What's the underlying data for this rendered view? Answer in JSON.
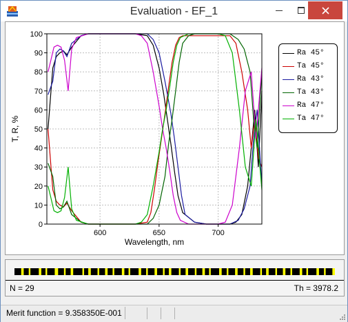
{
  "window": {
    "title": "Evaluation - EF_1"
  },
  "title_buttons": {
    "minimize": "minimize-icon",
    "maximize": "maximize-icon",
    "close": "close-icon"
  },
  "chart_data": {
    "type": "line",
    "xlabel": "Wavelength, nm",
    "ylabel": "T, R, %",
    "xlim": [
      555,
      737
    ],
    "ylim": [
      0,
      100
    ],
    "xticks": [
      600,
      650,
      700
    ],
    "yticks": [
      0,
      10,
      20,
      30,
      40,
      50,
      60,
      70,
      80,
      90,
      100
    ],
    "grid": true,
    "legend_position": "top-right",
    "series": [
      {
        "name": "Ra 45°",
        "color": "#000000",
        "x": [
          556,
          560,
          563,
          566,
          569,
          572,
          576,
          580,
          584,
          590,
          600,
          610,
          620,
          630,
          640,
          645,
          650,
          654,
          657,
          660,
          663,
          666,
          670,
          680,
          690,
          700,
          710,
          715,
          720,
          725,
          728,
          731,
          734,
          737
        ],
        "y": [
          50,
          82,
          88,
          90,
          91,
          89,
          93,
          96,
          99,
          100,
          100,
          100,
          100,
          100,
          99,
          94,
          82,
          68,
          55,
          42,
          28,
          15,
          6,
          1,
          0,
          0,
          0,
          1,
          5,
          20,
          40,
          60,
          30,
          70
        ]
      },
      {
        "name": "Ta 45°",
        "color": "#cc0000",
        "x": [
          556,
          560,
          563,
          566,
          569,
          572,
          576,
          580,
          584,
          590,
          600,
          610,
          620,
          630,
          640,
          643,
          646,
          649,
          652,
          655,
          658,
          661,
          664,
          667,
          670,
          680,
          690,
          700,
          710,
          715,
          720,
          725,
          728,
          731,
          734,
          737
        ],
        "y": [
          50,
          18,
          12,
          10,
          9,
          11,
          7,
          4,
          1,
          0,
          0,
          0,
          0,
          0,
          1,
          6,
          18,
          32,
          45,
          58,
          72,
          85,
          94,
          98,
          99,
          99,
          99,
          99,
          99,
          95,
          80,
          60,
          40,
          55,
          35,
          30
        ]
      },
      {
        "name": "Ra 43°",
        "color": "#1a1aa0",
        "x": [
          556,
          560,
          563,
          566,
          569,
          572,
          576,
          580,
          584,
          590,
          600,
          610,
          620,
          630,
          640,
          645,
          650,
          655,
          660,
          663,
          666,
          669,
          672,
          680,
          690,
          700,
          710,
          717,
          722,
          727,
          730,
          733,
          737
        ],
        "y": [
          68,
          75,
          90,
          92,
          91,
          88,
          95,
          97,
          99,
          100,
          100,
          100,
          100,
          100,
          100,
          97,
          90,
          75,
          58,
          45,
          30,
          15,
          5,
          1,
          0,
          0,
          0,
          2,
          8,
          20,
          45,
          60,
          20
        ]
      },
      {
        "name": "Ta 43°",
        "color": "#006400",
        "x": [
          556,
          560,
          563,
          566,
          569,
          572,
          576,
          580,
          584,
          590,
          600,
          610,
          620,
          630,
          640,
          645,
          650,
          655,
          658,
          661,
          664,
          667,
          670,
          675,
          680,
          690,
          700,
          710,
          717,
          722,
          727,
          730,
          733,
          737
        ],
        "y": [
          32,
          25,
          10,
          8,
          9,
          12,
          5,
          3,
          1,
          0,
          0,
          0,
          0,
          0,
          0,
          3,
          10,
          25,
          42,
          55,
          70,
          85,
          95,
          99,
          100,
          100,
          100,
          100,
          97,
          92,
          80,
          55,
          40,
          80
        ]
      },
      {
        "name": "Ra 47°",
        "color": "#cc00cc",
        "x": [
          556,
          558,
          561,
          564,
          567,
          570,
          573,
          576,
          580,
          585,
          590,
          600,
          610,
          620,
          630,
          635,
          640,
          645,
          650,
          653,
          656,
          659,
          662,
          665,
          668,
          675,
          680,
          690,
          700,
          706,
          712,
          718,
          723,
          728,
          732,
          737
        ],
        "y": [
          80,
          85,
          93,
          94,
          93,
          86,
          70,
          92,
          98,
          99,
          100,
          100,
          100,
          100,
          100,
          99,
          95,
          80,
          62,
          50,
          40,
          28,
          15,
          6,
          2,
          0,
          0,
          0,
          0,
          1,
          10,
          40,
          70,
          80,
          45,
          82
        ]
      },
      {
        "name": "Ta 47°",
        "color": "#00b000",
        "x": [
          556,
          558,
          561,
          564,
          567,
          570,
          573,
          576,
          580,
          585,
          590,
          600,
          610,
          620,
          630,
          635,
          640,
          645,
          650,
          653,
          656,
          659,
          662,
          665,
          668,
          675,
          680,
          690,
          700,
          706,
          712,
          718,
          723,
          728,
          732,
          737
        ],
        "y": [
          20,
          15,
          7,
          6,
          7,
          14,
          30,
          8,
          2,
          1,
          0,
          0,
          0,
          0,
          0,
          1,
          5,
          20,
          38,
          50,
          60,
          72,
          85,
          94,
          98,
          100,
          100,
          100,
          100,
          99,
          90,
          60,
          30,
          20,
          55,
          18
        ]
      }
    ]
  },
  "design": {
    "colors": [
      "#000000",
      "#ffff00"
    ],
    "pattern": [
      8,
      3,
      6,
      2,
      10,
      3,
      5,
      2,
      9,
      4,
      7,
      2,
      6,
      3,
      11,
      2,
      5,
      3,
      8,
      2,
      7,
      3,
      6,
      2,
      9,
      3,
      5,
      2,
      10,
      3,
      6,
      2,
      8,
      3,
      7,
      2,
      5,
      3,
      9,
      2,
      6,
      3,
      8,
      2,
      7,
      3,
      5,
      2,
      10,
      3,
      6,
      2,
      8,
      3,
      7,
      2,
      6,
      3,
      9,
      2,
      5,
      3,
      8,
      2,
      7,
      3,
      6,
      2,
      9,
      3,
      5,
      2,
      10,
      3,
      6,
      2,
      8,
      3
    ]
  },
  "stats": {
    "n_label": "N = 29",
    "th_label": "Th = 3978.2"
  },
  "status": {
    "merit": "Merit function = 9.358350E-001"
  }
}
